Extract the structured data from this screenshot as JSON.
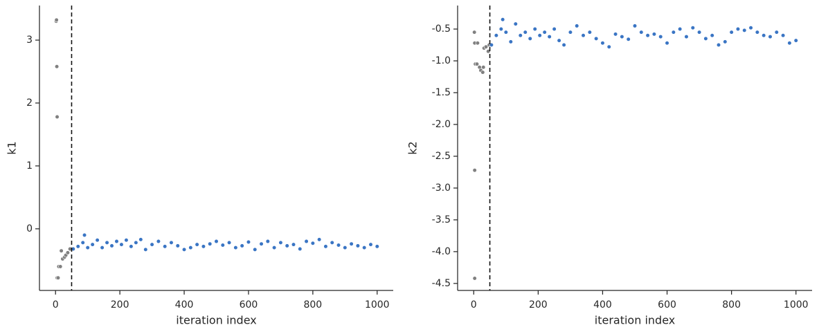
{
  "chart_data": [
    {
      "type": "scatter",
      "xlabel": "iteration index",
      "ylabel": "k1",
      "xlim": [
        -50,
        1050
      ],
      "ylim": [
        -0.98,
        3.55
      ],
      "xticks": [
        0,
        200,
        400,
        600,
        800,
        1000
      ],
      "yticks": [
        0,
        1,
        2,
        3
      ],
      "vline": 50,
      "grid": false,
      "series": [
        {
          "color": "#808080",
          "x": [
            2,
            3,
            4,
            5,
            5,
            8,
            10,
            15,
            18,
            22,
            28,
            32,
            38,
            45
          ],
          "y": [
            3.3,
            3.32,
            2.58,
            1.78,
            -0.78,
            -0.78,
            -0.6,
            -0.6,
            -0.35,
            -0.48,
            -0.45,
            -0.42,
            -0.38,
            -0.32
          ]
        },
        {
          "color": "#3a75c4",
          "x": [
            55,
            70,
            85,
            90,
            100,
            115,
            130,
            145,
            160,
            175,
            190,
            205,
            220,
            235,
            250,
            265,
            280,
            300,
            320,
            340,
            360,
            380,
            400,
            420,
            440,
            460,
            480,
            500,
            520,
            540,
            560,
            580,
            600,
            620,
            640,
            660,
            680,
            700,
            720,
            740,
            760,
            780,
            800,
            820,
            840,
            860,
            880,
            900,
            920,
            940,
            960,
            980,
            1000
          ],
          "y": [
            -0.32,
            -0.28,
            -0.22,
            -0.1,
            -0.3,
            -0.25,
            -0.18,
            -0.3,
            -0.22,
            -0.27,
            -0.2,
            -0.25,
            -0.18,
            -0.28,
            -0.22,
            -0.17,
            -0.33,
            -0.25,
            -0.2,
            -0.28,
            -0.22,
            -0.27,
            -0.33,
            -0.3,
            -0.25,
            -0.28,
            -0.24,
            -0.2,
            -0.26,
            -0.22,
            -0.3,
            -0.27,
            -0.21,
            -0.33,
            -0.24,
            -0.2,
            -0.3,
            -0.22,
            -0.27,
            -0.25,
            -0.32,
            -0.2,
            -0.23,
            -0.17,
            -0.28,
            -0.22,
            -0.26,
            -0.3,
            -0.24,
            -0.27,
            -0.3,
            -0.25,
            -0.28
          ]
        }
      ]
    },
    {
      "type": "scatter",
      "xlabel": "iteration index",
      "ylabel": "k2",
      "xlim": [
        -50,
        1050
      ],
      "ylim": [
        -4.61,
        -0.13
      ],
      "xticks": [
        0,
        200,
        400,
        600,
        800,
        1000
      ],
      "yticks": [
        -4.5,
        {
          "value": -4,
          "label": "-4.0"
        },
        -3.5,
        {
          "value": -3,
          "label": "-3.0"
        },
        -2.5,
        {
          "value": -2,
          "label": "-2.0"
        },
        -1.5,
        {
          "value": -1,
          "label": "-1.0"
        },
        -0.5
      ],
      "vline": 50,
      "grid": false,
      "series": [
        {
          "color": "#808080",
          "x": [
            2,
            3,
            3,
            3,
            5,
            10,
            12,
            18,
            22,
            28,
            30,
            32,
            38,
            45,
            48
          ],
          "y": [
            -0.55,
            -0.72,
            -2.72,
            -4.42,
            -1.05,
            -1.05,
            -0.72,
            -1.1,
            -1.15,
            -1.18,
            -1.1,
            -0.8,
            -0.78,
            -0.85,
            -0.75
          ]
        },
        {
          "color": "#3a75c4",
          "x": [
            55,
            70,
            85,
            90,
            100,
            115,
            130,
            145,
            160,
            175,
            190,
            205,
            220,
            235,
            250,
            265,
            280,
            300,
            320,
            340,
            360,
            380,
            400,
            420,
            440,
            460,
            480,
            500,
            520,
            540,
            560,
            580,
            600,
            620,
            640,
            660,
            680,
            700,
            720,
            740,
            760,
            780,
            800,
            820,
            840,
            860,
            880,
            900,
            920,
            940,
            960,
            980,
            1000
          ],
          "y": [
            -0.75,
            -0.6,
            -0.5,
            -0.35,
            -0.55,
            -0.7,
            -0.42,
            -0.6,
            -0.55,
            -0.65,
            -0.5,
            -0.6,
            -0.55,
            -0.62,
            -0.5,
            -0.68,
            -0.75,
            -0.55,
            -0.45,
            -0.6,
            -0.55,
            -0.65,
            -0.72,
            -0.78,
            -0.58,
            -0.62,
            -0.66,
            -0.45,
            -0.55,
            -0.6,
            -0.58,
            -0.62,
            -0.72,
            -0.55,
            -0.5,
            -0.62,
            -0.48,
            -0.55,
            -0.65,
            -0.6,
            -0.75,
            -0.7,
            -0.55,
            -0.5,
            -0.52,
            -0.48,
            -0.55,
            -0.6,
            -0.62,
            -0.55,
            -0.6,
            -0.72,
            -0.68
          ]
        }
      ]
    }
  ]
}
